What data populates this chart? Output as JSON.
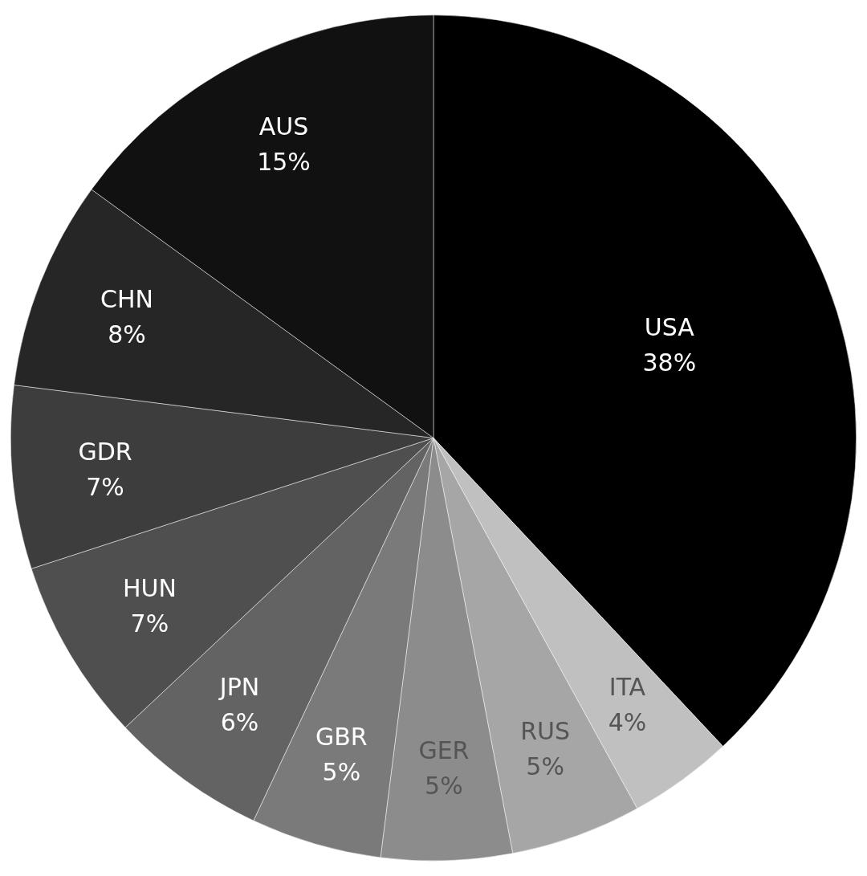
{
  "chart_data": {
    "type": "pie",
    "categories": [
      "USA",
      "ITA",
      "RUS",
      "GER",
      "GBR",
      "JPN",
      "HUN",
      "GDR",
      "CHN",
      "AUS"
    ],
    "values": [
      38,
      4,
      5,
      5,
      5,
      6,
      7,
      7,
      8,
      15
    ],
    "value_labels": [
      "38%",
      "4%",
      "5%",
      "5%",
      "5%",
      "6%",
      "7%",
      "7%",
      "8%",
      "15%"
    ],
    "colors": [
      "#000000",
      "#c0c0c0",
      "#a6a6a6",
      "#8c8c8c",
      "#7a7a7a",
      "#636363",
      "#4f4f4f",
      "#3d3d3d",
      "#262626",
      "#111111"
    ],
    "legend": false
  }
}
